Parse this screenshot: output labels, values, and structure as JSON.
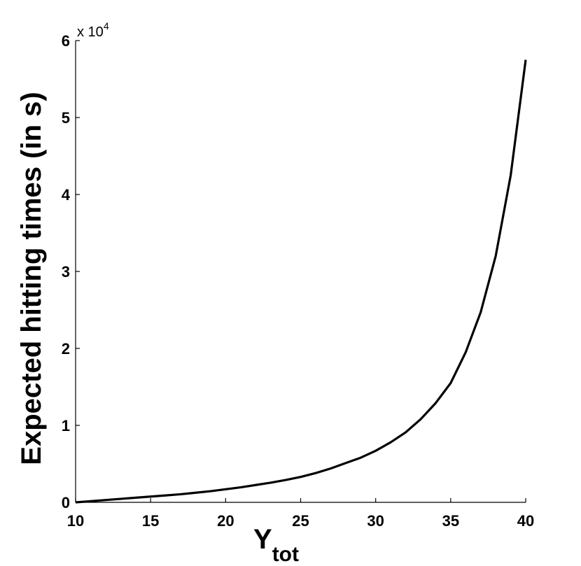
{
  "chart_data": {
    "type": "line",
    "title": "",
    "xlabel": "Y",
    "xlabel_subscript": "tot",
    "ylabel": "Expected hitting times (in s)",
    "y_multiplier_base": "x 10",
    "y_multiplier_exponent": "4",
    "xlim": [
      10,
      40
    ],
    "ylim": [
      0,
      60000
    ],
    "xticks": [
      10,
      15,
      20,
      25,
      30,
      35,
      40
    ],
    "yticks": [
      0,
      10000,
      20000,
      30000,
      40000,
      50000,
      60000
    ],
    "ytick_labels": [
      "0",
      "1",
      "2",
      "3",
      "4",
      "5",
      "6"
    ],
    "grid": false,
    "series": [
      {
        "color": "#000000",
        "x": [
          10,
          11,
          12,
          13,
          14,
          15,
          16,
          17,
          18,
          19,
          20,
          21,
          22,
          23,
          24,
          25,
          26,
          27,
          28,
          29,
          30,
          31,
          32,
          33,
          34,
          35,
          36,
          37,
          38,
          39,
          40
        ],
        "y": [
          0,
          150,
          300,
          450,
          600,
          750,
          900,
          1050,
          1250,
          1450,
          1700,
          1950,
          2250,
          2550,
          2900,
          3300,
          3800,
          4400,
          5100,
          5800,
          6700,
          7800,
          9100,
          10800,
          12900,
          15500,
          19500,
          24700,
          32000,
          42500,
          57500
        ]
      }
    ]
  }
}
